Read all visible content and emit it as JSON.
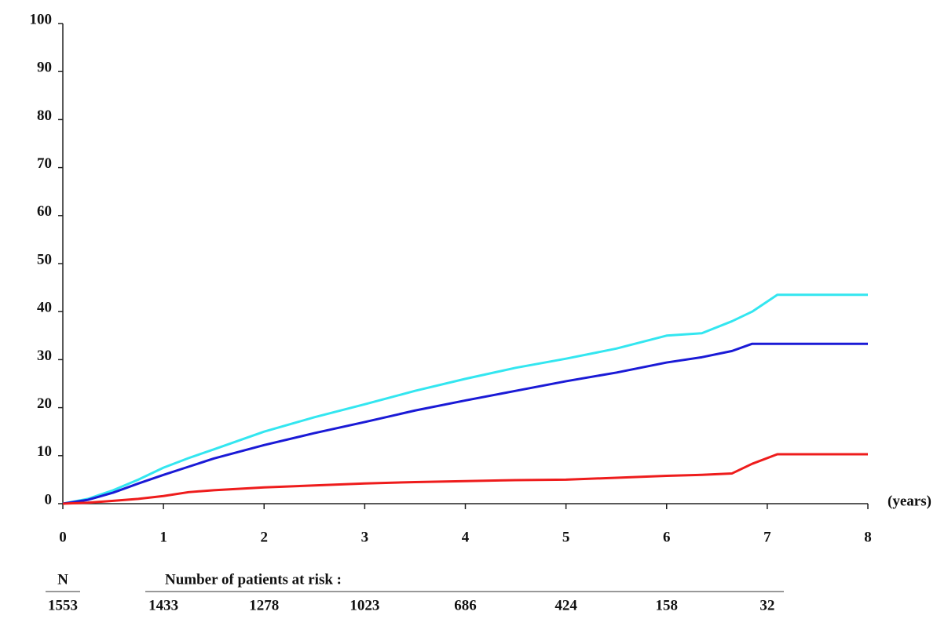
{
  "chart_data": {
    "type": "line",
    "x": [
      0,
      0.25,
      0.5,
      0.75,
      1,
      1.25,
      1.5,
      2,
      2.5,
      3,
      3.5,
      4,
      4.5,
      5,
      5.5,
      6,
      6.35,
      6.65,
      6.85,
      7.1,
      8
    ],
    "series": [
      {
        "color": "#33e6f0",
        "values": [
          0,
          1,
          2.8,
          5,
          7.5,
          9.5,
          11.3,
          15,
          18,
          20.7,
          23.5,
          26,
          28.3,
          30.2,
          32.3,
          35,
          35.5,
          38,
          40,
          43.5,
          43.5
        ]
      },
      {
        "color": "#1a1ad6",
        "values": [
          0,
          0.8,
          2.3,
          4.2,
          6,
          7.7,
          9.4,
          12.2,
          14.7,
          17,
          19.4,
          21.5,
          23.5,
          25.5,
          27.3,
          29.4,
          30.5,
          31.8,
          33.3,
          33.3,
          33.3
        ]
      },
      {
        "color": "#ee1c1c",
        "values": [
          0,
          0.2,
          0.6,
          1,
          1.6,
          2.4,
          2.8,
          3.4,
          3.8,
          4.2,
          4.5,
          4.7,
          4.9,
          5,
          5.4,
          5.8,
          6,
          6.3,
          8.3,
          10.3,
          10.3
        ]
      }
    ],
    "xlim": [
      0,
      8
    ],
    "xticks": [
      0,
      1,
      2,
      3,
      4,
      5,
      6,
      7,
      8
    ],
    "ylim": [
      0,
      100
    ],
    "yticks": [
      0,
      10,
      20,
      30,
      40,
      50,
      60,
      70,
      80,
      90,
      100
    ],
    "x_label": "(years)",
    "risk_table": {
      "n_header": "N",
      "n": "1553",
      "title": "Number of patients at risk :",
      "counts": [
        "1433",
        "1278",
        "1023",
        "686",
        "424",
        "158",
        "32"
      ]
    }
  }
}
